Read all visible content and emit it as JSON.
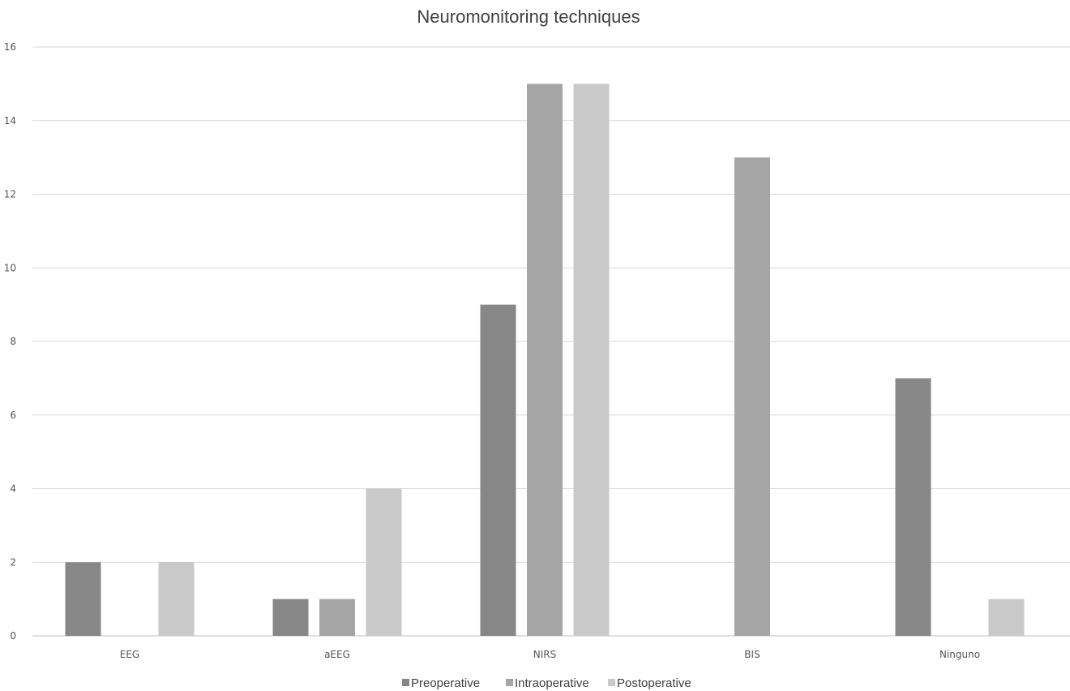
{
  "chart_data": {
    "type": "bar",
    "title": "Neuromonitoring techniques",
    "xlabel": "",
    "ylabel": "",
    "ylim": [
      0,
      16
    ],
    "yticks": [
      0,
      2,
      4,
      6,
      8,
      10,
      12,
      14,
      16
    ],
    "categories": [
      "EEG",
      "aEEG",
      "NIRS",
      "BIS",
      "Ninguno"
    ],
    "series": [
      {
        "name": "Preoperative",
        "color": "#878787",
        "values": [
          2,
          1,
          9,
          0,
          7
        ]
      },
      {
        "name": "Intraoperative",
        "color": "#a5a5a5",
        "values": [
          0,
          1,
          15,
          13,
          0
        ]
      },
      {
        "name": "Postoperative",
        "color": "#c9c9c9",
        "values": [
          2,
          4,
          15,
          0,
          1
        ]
      }
    ],
    "grid": true,
    "legend": "bottom"
  }
}
